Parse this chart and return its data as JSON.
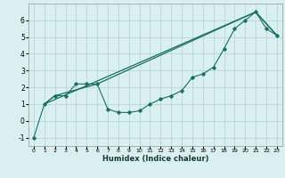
{
  "xlabel": "Humidex (Indice chaleur)",
  "ylabel": "",
  "bg_color": "#d8f0f0",
  "grid_color": "#b8d8d8",
  "line_color": "#1a7060",
  "xlim": [
    -0.5,
    23.5
  ],
  "ylim": [
    -1.5,
    7.0
  ],
  "yticks": [
    -1,
    0,
    1,
    2,
    3,
    4,
    5,
    6
  ],
  "xticks": [
    0,
    1,
    2,
    3,
    4,
    5,
    6,
    7,
    8,
    9,
    10,
    11,
    12,
    13,
    14,
    15,
    16,
    17,
    18,
    19,
    20,
    21,
    22,
    23
  ],
  "series1_x": [
    0,
    1,
    2,
    3,
    4,
    5,
    6,
    7,
    8,
    9,
    10,
    11,
    12,
    13,
    14,
    15,
    16,
    17,
    18,
    19,
    20,
    21,
    22,
    23
  ],
  "series1_y": [
    -1.0,
    1.0,
    1.5,
    1.5,
    2.2,
    2.2,
    2.2,
    0.7,
    0.5,
    0.5,
    0.6,
    1.0,
    1.3,
    1.5,
    1.8,
    2.6,
    2.8,
    3.2,
    4.3,
    5.5,
    6.0,
    6.5,
    5.5,
    5.1
  ],
  "series2_x": [
    1,
    2,
    6,
    21,
    23
  ],
  "series2_y": [
    1.0,
    1.5,
    2.2,
    6.5,
    5.1
  ],
  "series3_x": [
    1,
    21,
    23
  ],
  "series3_y": [
    1.0,
    6.5,
    5.1
  ]
}
